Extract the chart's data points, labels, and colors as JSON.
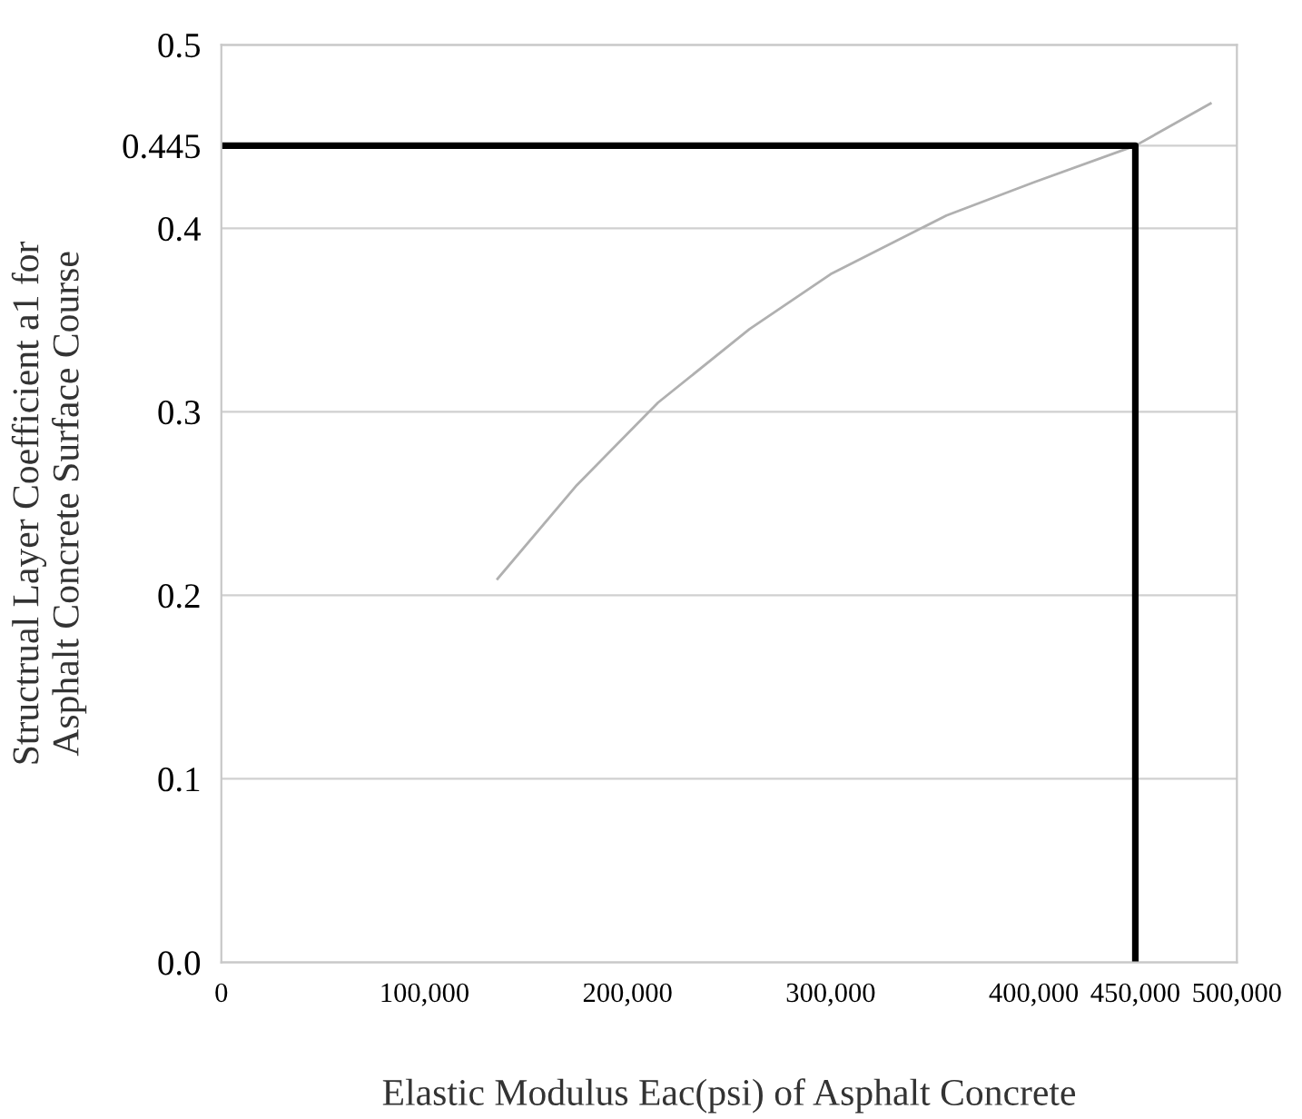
{
  "chart_data": {
    "type": "line",
    "xlabel": "Elastic Modulus Eac(psi) of Asphalt Concrete",
    "ylabel": "Structrual Layer Coefficient a1 for\nAsphalt Concrete Surface Course",
    "series": [
      {
        "color": "#b0b0b0",
        "x": [
          136000,
          175000,
          215000,
          260000,
          300000,
          357000,
          400000,
          450000,
          487000
        ],
        "values": [
          0.209,
          0.26,
          0.305,
          0.345,
          0.375,
          0.407,
          0.425,
          0.445,
          0.468
        ]
      },
      {
        "color": "#000000",
        "x": [
          0,
          450000,
          450000
        ],
        "values": [
          0.445,
          0.445,
          0.0
        ]
      }
    ],
    "xlim": [
      0,
      500000
    ],
    "ylim": [
      0,
      0.5
    ],
    "xticks": [
      0,
      {
        "value": 100000,
        "label": "100,000"
      },
      {
        "value": 200000,
        "label": "200,000"
      },
      {
        "value": 300000,
        "label": "300,000"
      },
      {
        "value": 400000,
        "label": "400,000"
      },
      {
        "value": 450000,
        "label": "450,000"
      },
      {
        "value": 500000,
        "label": "500,000"
      }
    ],
    "yticks": [
      {
        "value": 0,
        "label": "0.0"
      },
      0.1,
      0.2,
      0.3,
      0.4,
      0.445,
      0.5
    ],
    "grid": "y",
    "marker": "none",
    "line_style": "solid"
  }
}
